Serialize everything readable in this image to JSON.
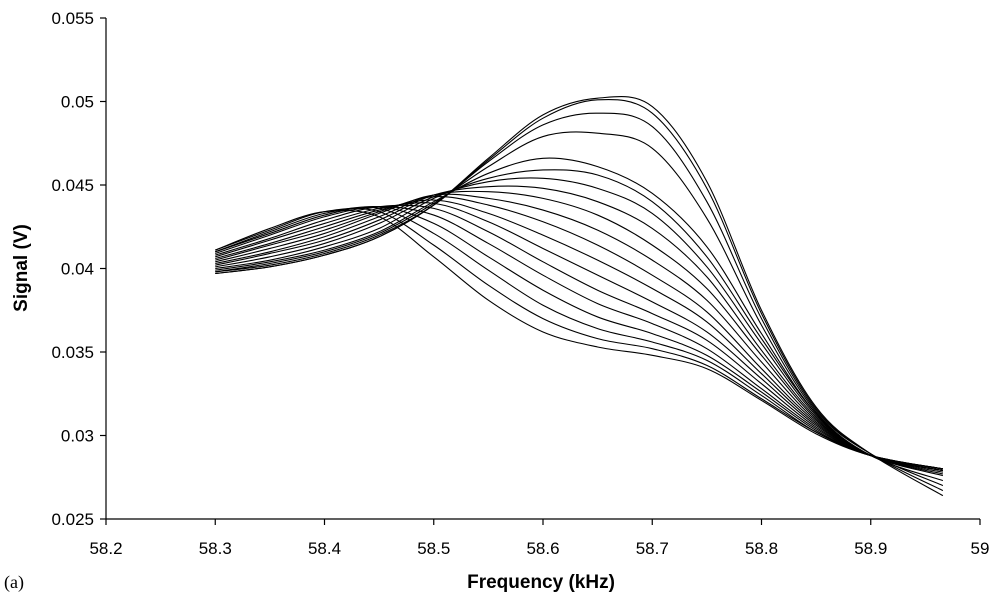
{
  "chart_data": {
    "type": "line",
    "title": "",
    "xlabel": "Frequency (kHz)",
    "ylabel": "Signal (V)",
    "panel_label": "(a)",
    "xlim": [
      58.2,
      59
    ],
    "ylim": [
      0.025,
      0.055
    ],
    "x_ticks": [
      58.2,
      58.3,
      58.4,
      58.5,
      58.6,
      58.7,
      58.8,
      58.9,
      59
    ],
    "x_tick_labels": [
      "58.2",
      "58.3",
      "58.4",
      "58.5",
      "58.6",
      "58.7",
      "58.8",
      "58.9",
      "59"
    ],
    "y_ticks": [
      0.025,
      0.03,
      0.035,
      0.04,
      0.045,
      0.05,
      0.055
    ],
    "y_tick_labels": [
      "0.025",
      "0.03",
      "0.035",
      "0.04",
      "0.045",
      "0.05",
      "0.055"
    ],
    "grid": false,
    "legend": "none",
    "line_color": "#000000",
    "x": [
      58.3,
      58.35,
      58.4,
      58.45,
      58.5,
      58.55,
      58.6,
      58.65,
      58.7,
      58.75,
      58.8,
      58.85,
      58.9,
      58.966
    ],
    "series": [
      {
        "values": [
          0.0397,
          0.0401,
          0.0408,
          0.0419,
          0.0438,
          0.0466,
          0.0492,
          0.0502,
          0.0497,
          0.0452,
          0.0375,
          0.0317,
          0.0289,
          0.0264
        ]
      },
      {
        "values": [
          0.0397,
          0.0401,
          0.0408,
          0.0419,
          0.0438,
          0.0465,
          0.049,
          0.0501,
          0.0493,
          0.0448,
          0.0373,
          0.0316,
          0.0289,
          0.0267
        ]
      },
      {
        "values": [
          0.0398,
          0.0402,
          0.0409,
          0.042,
          0.0438,
          0.0464,
          0.0486,
          0.0493,
          0.0485,
          0.044,
          0.037,
          0.0315,
          0.0289,
          0.027
        ]
      },
      {
        "values": [
          0.0398,
          0.0403,
          0.041,
          0.0421,
          0.0439,
          0.0461,
          0.0479,
          0.0481,
          0.0472,
          0.043,
          0.0366,
          0.0314,
          0.0288,
          0.0273
        ]
      },
      {
        "values": [
          0.0399,
          0.0404,
          0.0411,
          0.0422,
          0.044,
          0.0457,
          0.0466,
          0.0461,
          0.0445,
          0.0413,
          0.0361,
          0.0313,
          0.0288,
          0.0276
        ]
      },
      {
        "values": [
          0.04,
          0.0405,
          0.0413,
          0.0424,
          0.0442,
          0.0454,
          0.0459,
          0.0456,
          0.044,
          0.0407,
          0.0358,
          0.0313,
          0.0288,
          0.0277
        ]
      },
      {
        "values": [
          0.0401,
          0.0407,
          0.0415,
          0.0427,
          0.0443,
          0.0452,
          0.0454,
          0.0448,
          0.0433,
          0.0401,
          0.0355,
          0.0312,
          0.0288,
          0.0278
        ]
      },
      {
        "values": [
          0.0402,
          0.0409,
          0.0417,
          0.0429,
          0.0444,
          0.0449,
          0.0448,
          0.044,
          0.0424,
          0.0395,
          0.0351,
          0.0311,
          0.0288,
          0.0279
        ]
      },
      {
        "values": [
          0.0403,
          0.041,
          0.0419,
          0.0431,
          0.0444,
          0.0446,
          0.0442,
          0.0432,
          0.0414,
          0.0388,
          0.0348,
          0.031,
          0.0288,
          0.0279
        ]
      },
      {
        "values": [
          0.0404,
          0.0412,
          0.0421,
          0.0433,
          0.0444,
          0.0442,
          0.0435,
          0.0423,
          0.0405,
          0.0381,
          0.0344,
          0.0309,
          0.0288,
          0.0279
        ]
      },
      {
        "values": [
          0.0405,
          0.0414,
          0.0423,
          0.0434,
          0.0443,
          0.0438,
          0.0428,
          0.0414,
          0.0396,
          0.0374,
          0.034,
          0.0308,
          0.0288,
          0.0279
        ]
      },
      {
        "values": [
          0.0406,
          0.0415,
          0.0425,
          0.0435,
          0.0441,
          0.0433,
          0.042,
          0.0405,
          0.0388,
          0.0368,
          0.0337,
          0.0307,
          0.0288,
          0.028
        ]
      },
      {
        "values": [
          0.0407,
          0.0417,
          0.0427,
          0.0436,
          0.0439,
          0.0428,
          0.0412,
          0.0396,
          0.038,
          0.0362,
          0.0334,
          0.0306,
          0.0288,
          0.028
        ]
      },
      {
        "values": [
          0.0408,
          0.0418,
          0.0429,
          0.0437,
          0.0436,
          0.0422,
          0.0404,
          0.0387,
          0.0373,
          0.0357,
          0.0331,
          0.0305,
          0.0288,
          0.028
        ]
      },
      {
        "values": [
          0.0409,
          0.042,
          0.0431,
          0.0437,
          0.0432,
          0.0415,
          0.0396,
          0.0379,
          0.0367,
          0.0352,
          0.0328,
          0.0304,
          0.0288,
          0.028
        ]
      },
      {
        "values": [
          0.041,
          0.0421,
          0.0432,
          0.0437,
          0.0427,
          0.0407,
          0.0387,
          0.0371,
          0.0361,
          0.0348,
          0.0326,
          0.0303,
          0.0288,
          0.028
        ]
      },
      {
        "values": [
          0.041,
          0.0422,
          0.0433,
          0.0436,
          0.0421,
          0.0399,
          0.0378,
          0.0364,
          0.0356,
          0.0345,
          0.0324,
          0.0302,
          0.0288,
          0.028
        ]
      },
      {
        "values": [
          0.0411,
          0.0423,
          0.0434,
          0.0434,
          0.0414,
          0.039,
          0.037,
          0.0358,
          0.0352,
          0.0342,
          0.0322,
          0.0302,
          0.0288,
          0.028
        ]
      },
      {
        "values": [
          0.0411,
          0.0424,
          0.0434,
          0.0431,
          0.0407,
          0.0381,
          0.0362,
          0.0353,
          0.0348,
          0.034,
          0.0321,
          0.0301,
          0.0288,
          0.028
        ]
      }
    ]
  }
}
